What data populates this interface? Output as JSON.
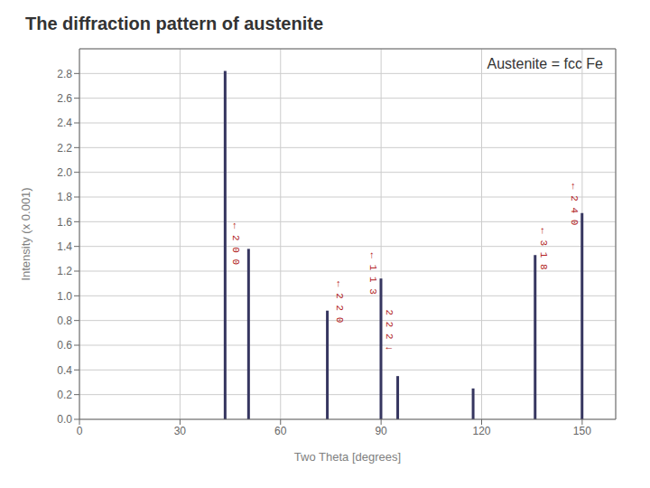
{
  "chart_data": {
    "type": "stem",
    "title": "The diffraction pattern of austenite",
    "subtitle": "Austenite = fcc Fe",
    "xlabel": "Two Theta [degrees]",
    "ylabel": "Intensity (x 0.001)",
    "x": [
      43.5,
      50.5,
      74.0,
      90.0,
      95.0,
      117.5,
      136.0,
      150.0
    ],
    "values": [
      2.82,
      1.38,
      0.88,
      1.14,
      0.35,
      0.25,
      1.33,
      1.67
    ],
    "color": "#363660",
    "xlim": [
      0,
      160
    ],
    "xticks": [
      0,
      30,
      60,
      90,
      120,
      150
    ],
    "ylim": [
      0,
      3.0
    ],
    "yticks": [
      {
        "value": 0,
        "label": "0.0"
      },
      0.2,
      0.4,
      0.6,
      0.8,
      {
        "value": 1,
        "label": "1.0"
      },
      1.2,
      1.4,
      1.6,
      1.8,
      {
        "value": 2,
        "label": "2.0"
      },
      2.2,
      2.4,
      2.6,
      2.8
    ],
    "grid": true,
    "annotations": [
      {
        "x": 46.5,
        "y": 1.42,
        "text": "← 2 0 0"
      },
      {
        "x": 77.5,
        "y": 0.95,
        "text": "← 2 2 0"
      },
      {
        "x": 87.5,
        "y": 1.18,
        "text": "← 1 1 3"
      },
      {
        "x": 92.5,
        "y": 0.72,
        "text": "2 2 2 ↓"
      },
      {
        "x": 138.5,
        "y": 1.38,
        "text": "← 3 1 8"
      },
      {
        "x": 147.5,
        "y": 1.74,
        "text": "← 2 4 0"
      }
    ]
  }
}
